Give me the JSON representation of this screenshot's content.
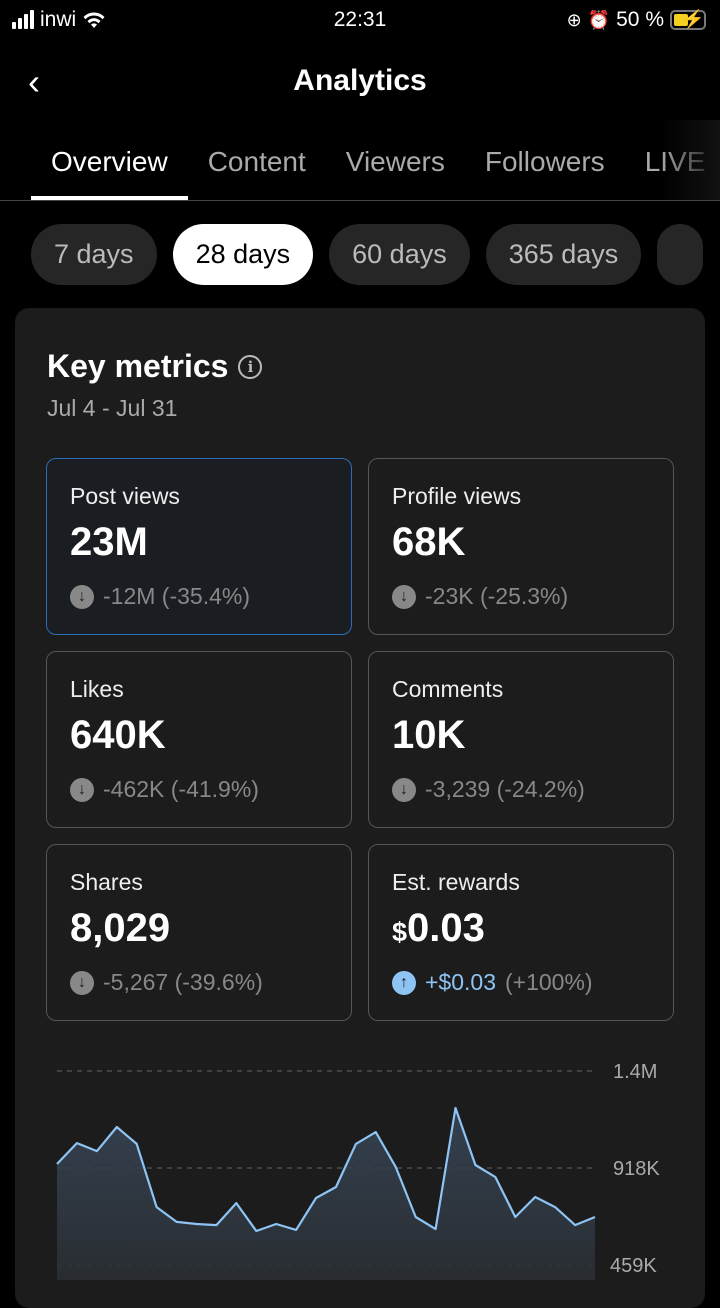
{
  "status_bar": {
    "carrier": "inwi",
    "time": "22:31",
    "battery": "50 %",
    "battery_level": 0.5,
    "icons": [
      "signal-icon",
      "wifi-icon",
      "rotation-lock-icon",
      "alarm-icon",
      "battery-charging-icon"
    ]
  },
  "header": {
    "title": "Analytics",
    "back_icon": "chevron-left-icon"
  },
  "tabs": [
    {
      "label": "Overview",
      "active": true
    },
    {
      "label": "Content"
    },
    {
      "label": "Viewers"
    },
    {
      "label": "Followers"
    },
    {
      "label": "LIVE"
    }
  ],
  "ranges": [
    {
      "label": "7 days"
    },
    {
      "label": "28 days",
      "active": true
    },
    {
      "label": "60 days"
    },
    {
      "label": "365 days"
    }
  ],
  "key_metrics": {
    "title": "Key metrics",
    "date_range": "Jul 4 - Jul 31",
    "metrics": [
      {
        "label": "Post views",
        "value": "23M",
        "delta": "-12M (-35.4%)",
        "direction": "down",
        "selected": true
      },
      {
        "label": "Profile views",
        "value": "68K",
        "delta": "-23K (-25.3%)",
        "direction": "down"
      },
      {
        "label": "Likes",
        "value": "640K",
        "delta": "-462K (-41.9%)",
        "direction": "down"
      },
      {
        "label": "Comments",
        "value": "10K",
        "delta": "-3,239 (-24.2%)",
        "direction": "down"
      },
      {
        "label": "Shares",
        "value": "8,029",
        "delta": "-5,267 (-39.6%)",
        "direction": "down"
      },
      {
        "label": "Est. rewards",
        "currency": "$",
        "value": "0.03",
        "delta_main": "+$0.03",
        "delta_pct": "(+100%)",
        "direction": "up"
      }
    ]
  },
  "colors": {
    "accent": "#8ec4f4",
    "selected_border": "#2d6db3",
    "card_bg": "#1c1c1c"
  },
  "chart_data": {
    "type": "area",
    "series": [
      {
        "name": "Post views",
        "values": [
          937,
          1036,
          998,
          1112,
          1032,
          733,
          663,
          653,
          648,
          752,
          620,
          653,
          625,
          776,
          828,
          1032,
          1088,
          923,
          686,
          629,
          1202,
          932,
          875,
          686,
          781,
          733,
          648,
          686
        ]
      }
    ],
    "unit": "K",
    "y_ticks": [
      "1.4M",
      "918K",
      "459K"
    ],
    "y_tick_values": [
      1377,
      918,
      459
    ],
    "ylim": [
      400,
      1377
    ],
    "grid": true
  }
}
